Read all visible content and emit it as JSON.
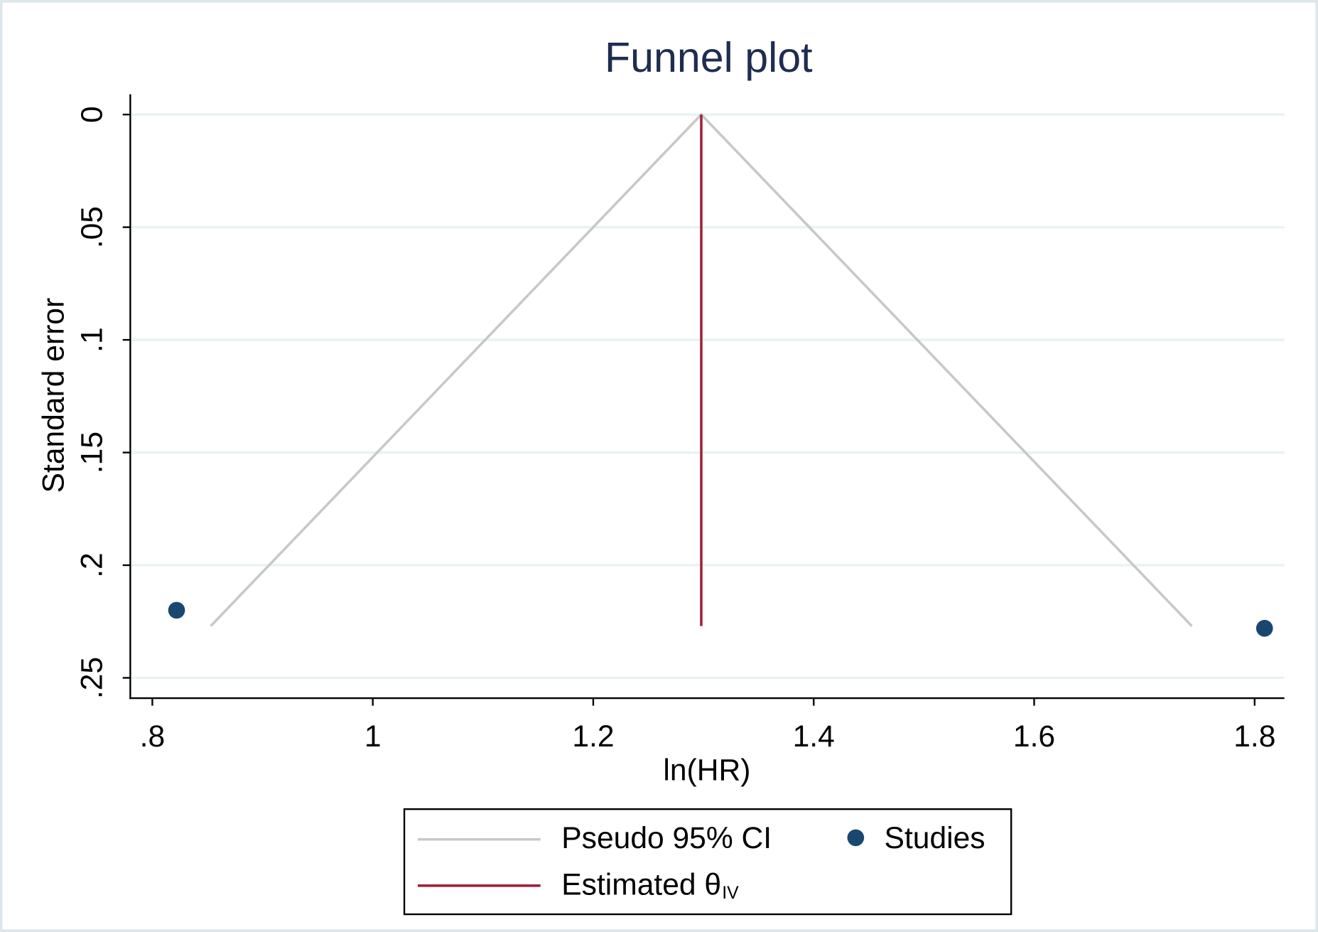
{
  "chart_data": {
    "type": "funnel",
    "title": "Funnel plot",
    "x_label": "ln(HR)",
    "y_label": "Standard error",
    "xlim": [
      0.78,
      1.827
    ],
    "ylim": [
      -0.009,
      0.259
    ],
    "y_reversed": true,
    "xticks": [
      {
        "value": 0.8,
        "label": ".8"
      },
      1,
      1.2,
      1.4,
      1.6,
      1.8
    ],
    "yticks": [
      0,
      {
        "value": 0.05,
        "label": ".05"
      },
      {
        "value": 0.1,
        "label": ".1"
      },
      {
        "value": 0.15,
        "label": ".15"
      },
      {
        "value": 0.2,
        "label": ".2"
      },
      {
        "value": 0.25,
        "label": ".25"
      }
    ],
    "grid": true,
    "legend": "bottom",
    "series": [
      {
        "name": "Pseudo 95% CI",
        "mark": "line",
        "color": "#c8c8c8",
        "x": [
          0.853,
          1.298,
          1.743
        ],
        "values": [
          0.227,
          0,
          0.227
        ]
      },
      {
        "name": "Studies",
        "mark": "scatter",
        "color": "#1a476f",
        "x": [
          0.822,
          1.809
        ],
        "values": [
          0.22,
          0.228
        ]
      },
      {
        "name": "Estimated θ",
        "subscript": "IV",
        "mark": "line",
        "color": "#a0203c",
        "x": [
          1.298,
          1.298
        ],
        "values": [
          0,
          0.227
        ]
      }
    ]
  }
}
